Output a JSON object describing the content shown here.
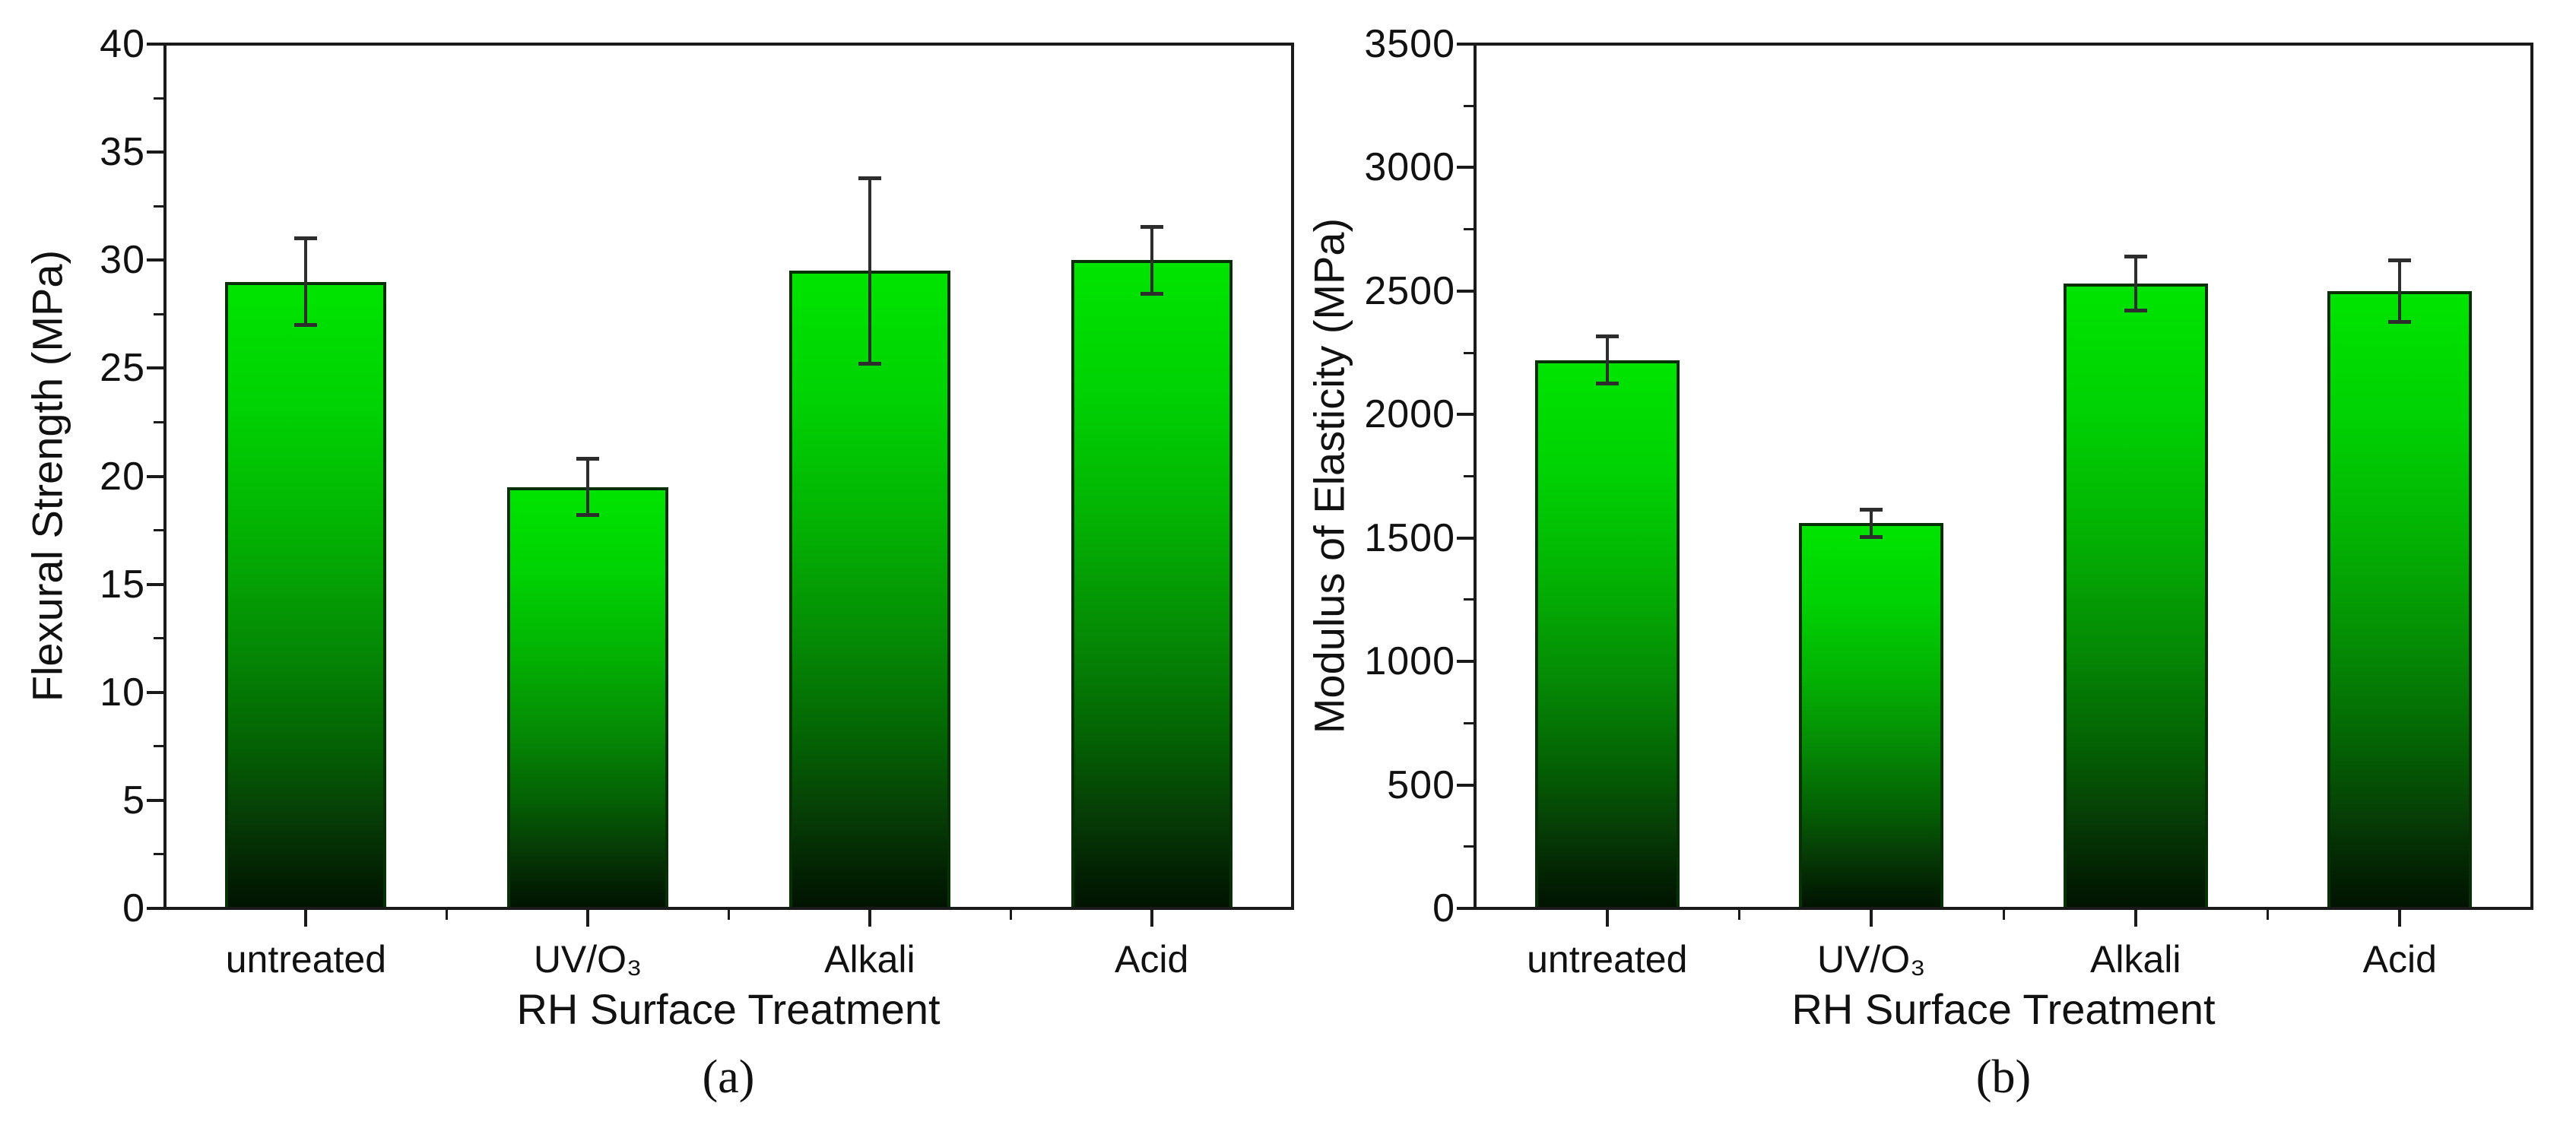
{
  "figure": {
    "background": "#ffffff",
    "description": "Two-panel bar chart of RH surface treatment effects"
  },
  "chart_data": [
    {
      "type": "bar",
      "panel_label": "(a)",
      "title": "",
      "xlabel": "RH Surface Treatment",
      "ylabel": "Flexural Strength (MPa)",
      "categories": [
        "untreated",
        "UV/O₃",
        "Alkali",
        "Acid"
      ],
      "values": [
        29.0,
        19.5,
        29.5,
        30.0
      ],
      "error_bars": [
        2.0,
        1.3,
        4.3,
        1.55
      ],
      "ylim": [
        0,
        40
      ],
      "ytick_step": 5,
      "yminor_step": 2.5,
      "ytick_labels": [
        "0",
        "5",
        "10",
        "15",
        "20",
        "25",
        "30",
        "35",
        "40"
      ],
      "grid": false,
      "legend": null,
      "colors": {
        "bar_top": "#00e400",
        "bar_bottom": "#011301",
        "bar_border": "#073007",
        "error": "#2d2d2d",
        "axis": "#1a1a1a"
      }
    },
    {
      "type": "bar",
      "panel_label": "(b)",
      "title": "",
      "xlabel": "RH Surface Treatment",
      "ylabel": "Modulus of Elasticity (MPa)",
      "categories": [
        "untreated",
        "UV/O₃",
        "Alkali",
        "Acid"
      ],
      "values": [
        2220,
        1560,
        2530,
        2500
      ],
      "error_bars": [
        95,
        55,
        110,
        125
      ],
      "ylim": [
        0,
        3500
      ],
      "ytick_step": 500,
      "yminor_step": 250,
      "ytick_labels": [
        "0",
        "500",
        "1000",
        "1500",
        "2000",
        "2500",
        "3000",
        "3500"
      ],
      "grid": false,
      "legend": null,
      "colors": {
        "bar_top": "#00e400",
        "bar_bottom": "#011301",
        "bar_border": "#073007",
        "error": "#2d2d2d",
        "axis": "#1a1a1a"
      }
    }
  ]
}
